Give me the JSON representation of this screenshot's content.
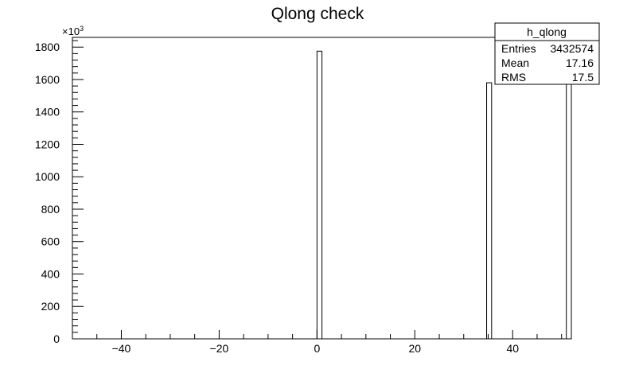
{
  "chart_data": {
    "type": "bar",
    "title": "Qlong check",
    "xlabel": "",
    "ylabel": "",
    "xlim": [
      -50,
      52
    ],
    "ylim": [
      0,
      1860
    ],
    "y_exponent_label": "×10",
    "y_exponent_power": "3",
    "x_ticks": [
      -40,
      -20,
      0,
      20,
      40
    ],
    "x_tick_labels": [
      "−40",
      "−20",
      "0",
      "20",
      "40"
    ],
    "y_ticks": [
      0,
      200,
      400,
      600,
      800,
      1000,
      1200,
      1400,
      1600,
      1800
    ],
    "y_tick_labels": [
      "0",
      "200",
      "400",
      "600",
      "800",
      "1000",
      "1200",
      "1400",
      "1600",
      "1800"
    ],
    "bars": [
      {
        "x0": 0.0,
        "x1": 1.02,
        "value": 1775
      },
      {
        "x0": 34.68,
        "x1": 35.7,
        "value": 1580
      },
      {
        "x0": 50.98,
        "x1": 52.0,
        "value": 1860
      }
    ],
    "grid": false,
    "legend_position": "top-right",
    "stats_box": {
      "name": "h_qlong",
      "rows": [
        {
          "label": "Entries",
          "value": "3432574"
        },
        {
          "label": "Mean",
          "value": "17.16"
        },
        {
          "label": "RMS",
          "value": "17.5"
        }
      ]
    }
  }
}
